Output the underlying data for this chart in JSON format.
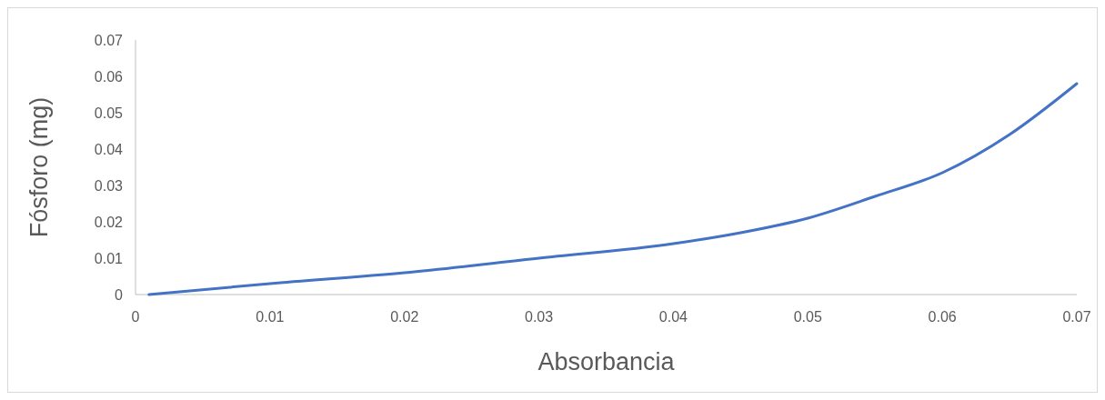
{
  "chart_data": {
    "type": "line",
    "xlabel": "Absorbancia",
    "ylabel": "Fósforo (mg)",
    "x": [
      0.001,
      0.01,
      0.02,
      0.03,
      0.04,
      0.045,
      0.05,
      0.055,
      0.06,
      0.065,
      0.07
    ],
    "series": [
      {
        "color": "#4472c4",
        "values": [
          0,
          0.003,
          0.006,
          0.01,
          0.014,
          0.017,
          0.021,
          0.027,
          0.0335,
          0.044,
          0.058
        ]
      }
    ],
    "xlim": [
      0,
      0.07
    ],
    "xticks": [
      0,
      0.01,
      0.02,
      0.03,
      0.04,
      0.05,
      0.06,
      0.07
    ],
    "ylim": [
      0,
      0.07
    ],
    "yticks": [
      0,
      0.01,
      0.02,
      0.03,
      0.04,
      0.05,
      0.06,
      0.07
    ],
    "grid": false,
    "marker": "none",
    "line_style": "solid"
  }
}
